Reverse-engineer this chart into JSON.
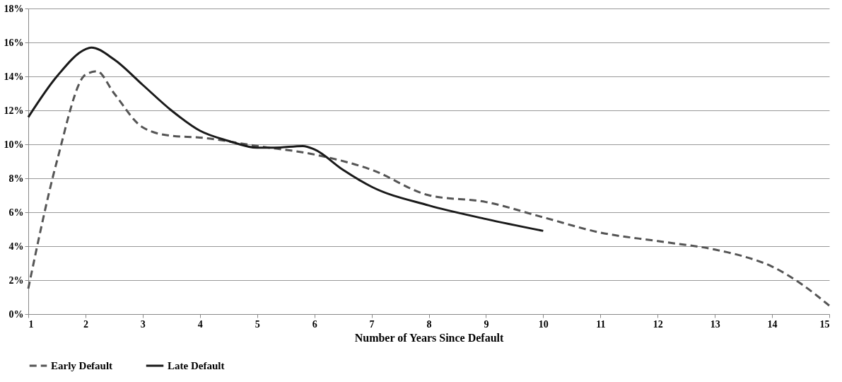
{
  "chart_data": {
    "type": "line",
    "xlabel": "Number of Years Since Default",
    "xlim": [
      1,
      15
    ],
    "xticks": [
      1,
      2,
      3,
      4,
      5,
      6,
      7,
      8,
      9,
      10,
      11,
      12,
      13,
      14,
      15
    ],
    "ylim": [
      0,
      18
    ],
    "yticks": [
      {
        "value": 0,
        "label": "0%"
      },
      {
        "value": 2,
        "label": "2%"
      },
      {
        "value": 4,
        "label": "4%"
      },
      {
        "value": 6,
        "label": "6%"
      },
      {
        "value": 8,
        "label": "8%"
      },
      {
        "value": 10,
        "label": "10%"
      },
      {
        "value": 12,
        "label": "12%"
      },
      {
        "value": 14,
        "label": "14%"
      },
      {
        "value": 16,
        "label": "16%"
      },
      {
        "value": 18,
        "label": "18%"
      }
    ],
    "grid": "y",
    "legend": "bottom",
    "marker": "none",
    "series": [
      {
        "name": "Early Default",
        "color": "#555555",
        "line_style": "dashed",
        "x": [
          1,
          1.5,
          2,
          2.2,
          2.5,
          3,
          3.5,
          4,
          5,
          6,
          7,
          8,
          9,
          10,
          11,
          12,
          13,
          13.5,
          14,
          14.5,
          15
        ],
        "values": [
          1.5,
          9,
          14.1,
          14.3,
          13,
          11,
          10.5,
          10.4,
          9.9,
          9.4,
          8.5,
          7.0,
          6.6,
          5.7,
          4.8,
          4.3,
          3.8,
          3.4,
          2.8,
          1.8,
          0.5
        ]
      },
      {
        "name": "Late Default",
        "color": "#1a1a1a",
        "line_style": "solid",
        "x": [
          1,
          1.5,
          2,
          2.1,
          2.5,
          3,
          3.5,
          4,
          4.5,
          5,
          5.3,
          5.8,
          6,
          6.5,
          7,
          8,
          9,
          10
        ],
        "values": [
          11.6,
          14,
          15.6,
          15.7,
          15,
          13.5,
          12,
          10.8,
          10.2,
          9.8,
          9.8,
          9.9,
          9.7,
          8.5,
          7.5,
          6.4,
          5.6,
          4.9
        ]
      }
    ]
  }
}
